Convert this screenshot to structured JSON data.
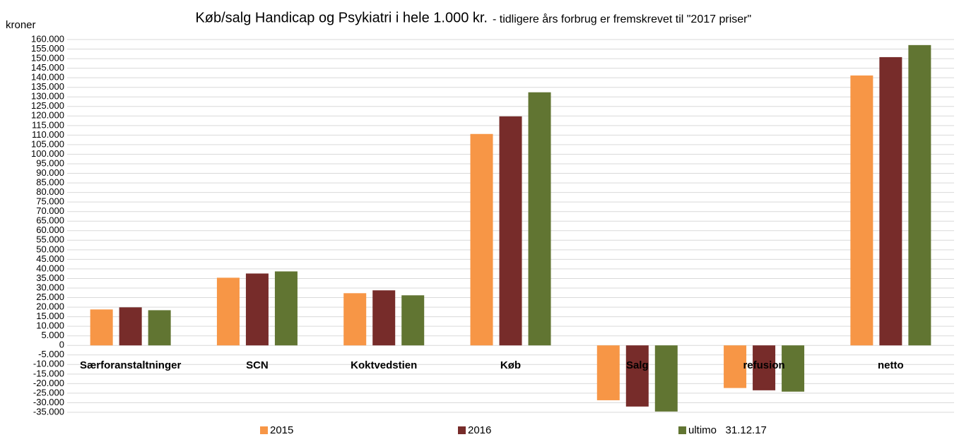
{
  "chart_data": {
    "type": "bar",
    "title": "Køb/salg Handicap og Psykiatri i hele 1.000 kr.",
    "subtitle": "- tidligere års forbrug er fremskrevet til \"2017 priser\"",
    "y_label": "kroner",
    "categories": [
      "Særforanstaltninger",
      "SCN",
      "Koktvedstien",
      "Køb",
      "Salg",
      "refusion",
      "netto"
    ],
    "series": [
      {
        "name": "2015",
        "color": "#f79646",
        "values": [
          18800,
          35400,
          27300,
          110600,
          -28700,
          -22300,
          141200
        ]
      },
      {
        "name": "2016",
        "color": "#772c2a",
        "values": [
          19900,
          37600,
          28800,
          119800,
          -32000,
          -23500,
          150800
        ]
      },
      {
        "name": "ultimo   31.12.17",
        "color": "#617532",
        "values": [
          18400,
          38700,
          26200,
          132400,
          -34600,
          -24200,
          157100
        ]
      }
    ],
    "ylim": [
      -35000,
      160000
    ],
    "yticks": [
      {
        "value": -35000,
        "label": "-35.000"
      },
      {
        "value": -30000,
        "label": "-30.000"
      },
      {
        "value": -25000,
        "label": "-25.000"
      },
      {
        "value": -20000,
        "label": "-20.000"
      },
      {
        "value": -15000,
        "label": "-15.000"
      },
      {
        "value": -10000,
        "label": "-10.000"
      },
      {
        "value": -5000,
        "label": "-5.000"
      },
      0,
      {
        "value": 5000,
        "label": "5.000"
      },
      {
        "value": 10000,
        "label": "10.000"
      },
      {
        "value": 15000,
        "label": "15.000"
      },
      {
        "value": 20000,
        "label": "20.000"
      },
      {
        "value": 25000,
        "label": "25.000"
      },
      {
        "value": 30000,
        "label": "30.000"
      },
      {
        "value": 35000,
        "label": "35.000"
      },
      {
        "value": 40000,
        "label": "40.000"
      },
      {
        "value": 45000,
        "label": "45.000"
      },
      {
        "value": 50000,
        "label": "50.000"
      },
      {
        "value": 55000,
        "label": "55.000"
      },
      {
        "value": 60000,
        "label": "60.000"
      },
      {
        "value": 65000,
        "label": "65.000"
      },
      {
        "value": 70000,
        "label": "70.000"
      },
      {
        "value": 75000,
        "label": "75.000"
      },
      {
        "value": 80000,
        "label": "80.000"
      },
      {
        "value": 85000,
        "label": "85.000"
      },
      {
        "value": 90000,
        "label": "90.000"
      },
      {
        "value": 95000,
        "label": "95.000"
      },
      {
        "value": 100000,
        "label": "100.000"
      },
      {
        "value": 105000,
        "label": "105.000"
      },
      {
        "value": 110000,
        "label": "110.000"
      },
      {
        "value": 115000,
        "label": "115.000"
      },
      {
        "value": 120000,
        "label": "120.000"
      },
      {
        "value": 125000,
        "label": "125.000"
      },
      {
        "value": 130000,
        "label": "130.000"
      },
      {
        "value": 135000,
        "label": "135.000"
      },
      {
        "value": 140000,
        "label": "140.000"
      },
      {
        "value": 145000,
        "label": "145.000"
      },
      {
        "value": 150000,
        "label": "150.000"
      },
      {
        "value": 155000,
        "label": "155.000"
      },
      {
        "value": 160000,
        "label": "160.000"
      }
    ],
    "grid": true,
    "legend": "bottom"
  }
}
